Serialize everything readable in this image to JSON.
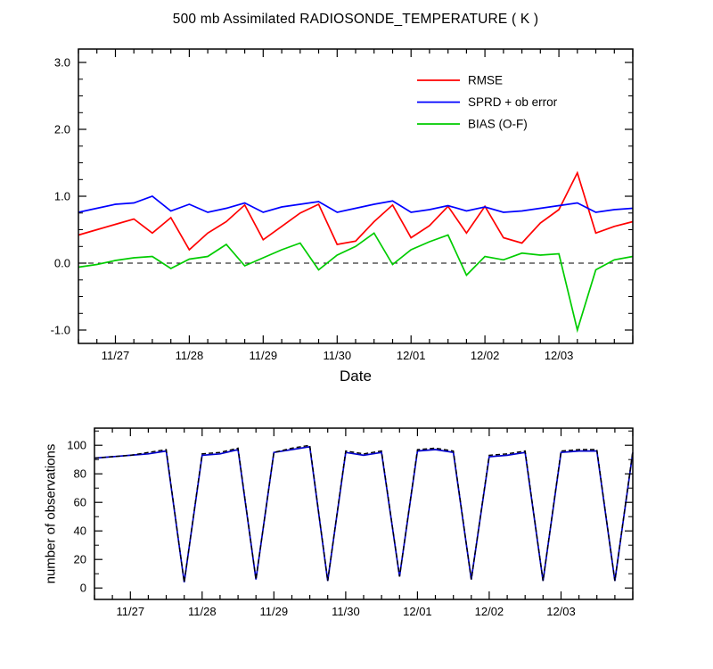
{
  "page": {
    "background": "#ffffff"
  },
  "chart_data": [
    {
      "type": "line",
      "title": "500 mb Assimilated RADIOSONDE_TEMPERATURE ( K )",
      "xlabel": "Date",
      "ylabel": "",
      "ylim": [
        -1.2,
        3.2
      ],
      "ytick_values": [
        -1.0,
        0.0,
        1.0,
        2.0,
        3.0
      ],
      "ytick_labels": [
        "-1.0",
        "0.0",
        "1.0",
        "2.0",
        "3.0"
      ],
      "yminor_step": 0.25,
      "x_interval_hours": 6,
      "xtick_major_indices": [
        2,
        6,
        10,
        14,
        18,
        22,
        26,
        30
      ],
      "xtick_labels": [
        "11/27",
        "11/28",
        "11/29",
        "11/30",
        "12/01",
        "12/02",
        "12/03",
        ""
      ],
      "grid": false,
      "zero_line": true,
      "legend_position": "upper-right",
      "series": [
        {
          "name": "RMSE",
          "color": "#ff0000",
          "style": "solid",
          "values": [
            0.42,
            0.5,
            0.58,
            0.66,
            0.45,
            0.68,
            0.2,
            0.45,
            0.62,
            0.87,
            0.35,
            0.55,
            0.75,
            0.88,
            0.28,
            0.33,
            0.62,
            0.87,
            0.38,
            0.56,
            0.85,
            0.45,
            0.85,
            0.38,
            0.3,
            0.6,
            0.8,
            1.35,
            0.45,
            0.55,
            0.62
          ]
        },
        {
          "name": "SPRD + ob error",
          "color": "#0000ff",
          "style": "solid",
          "values": [
            0.76,
            0.82,
            0.88,
            0.9,
            1.0,
            0.78,
            0.88,
            0.76,
            0.82,
            0.9,
            0.76,
            0.84,
            0.88,
            0.92,
            0.76,
            0.82,
            0.88,
            0.93,
            0.76,
            0.8,
            0.86,
            0.78,
            0.84,
            0.76,
            0.78,
            0.82,
            0.86,
            0.9,
            0.76,
            0.8,
            0.82
          ]
        },
        {
          "name": "BIAS (O-F)",
          "color": "#00cc00",
          "style": "solid",
          "values": [
            -0.06,
            -0.02,
            0.04,
            0.08,
            0.1,
            -0.08,
            0.06,
            0.1,
            0.28,
            -0.04,
            0.08,
            0.2,
            0.3,
            -0.1,
            0.12,
            0.25,
            0.45,
            -0.02,
            0.2,
            0.32,
            0.42,
            -0.18,
            0.1,
            0.05,
            0.15,
            0.12,
            0.14,
            -1.0,
            -0.1,
            0.05,
            0.1
          ]
        }
      ]
    },
    {
      "type": "line",
      "title": "",
      "xlabel": "",
      "ylabel": "number of observations",
      "ylim": [
        -8,
        112
      ],
      "ytick_values": [
        0,
        20,
        40,
        60,
        80,
        100
      ],
      "ytick_labels": [
        "0",
        "20",
        "40",
        "60",
        "80",
        "100"
      ],
      "yminor_step": 10,
      "x_interval_hours": 6,
      "xtick_major_indices": [
        2,
        6,
        10,
        14,
        18,
        22,
        26,
        30
      ],
      "xtick_labels": [
        "11/27",
        "11/28",
        "11/29",
        "11/30",
        "12/01",
        "12/02",
        "12/03",
        ""
      ],
      "grid": false,
      "zero_line": false,
      "legend_position": "none",
      "series": [
        {
          "name": "",
          "color": "#0000cc",
          "style": "solid",
          "values": [
            91,
            92,
            93,
            94,
            96,
            4,
            93,
            94,
            97,
            6,
            95,
            97,
            99,
            5,
            95,
            93,
            95,
            8,
            96,
            97,
            95,
            6,
            92,
            93,
            95,
            5,
            95,
            96,
            96,
            5,
            95
          ]
        },
        {
          "name": "",
          "color": "#000000",
          "style": "dashed",
          "values": [
            91,
            92,
            93,
            95,
            97,
            4,
            94,
            95,
            98,
            6,
            95,
            98,
            100,
            5,
            96,
            94,
            96,
            8,
            97,
            98,
            96,
            6,
            93,
            94,
            96,
            5,
            96,
            97,
            97,
            5,
            96
          ]
        }
      ]
    }
  ]
}
